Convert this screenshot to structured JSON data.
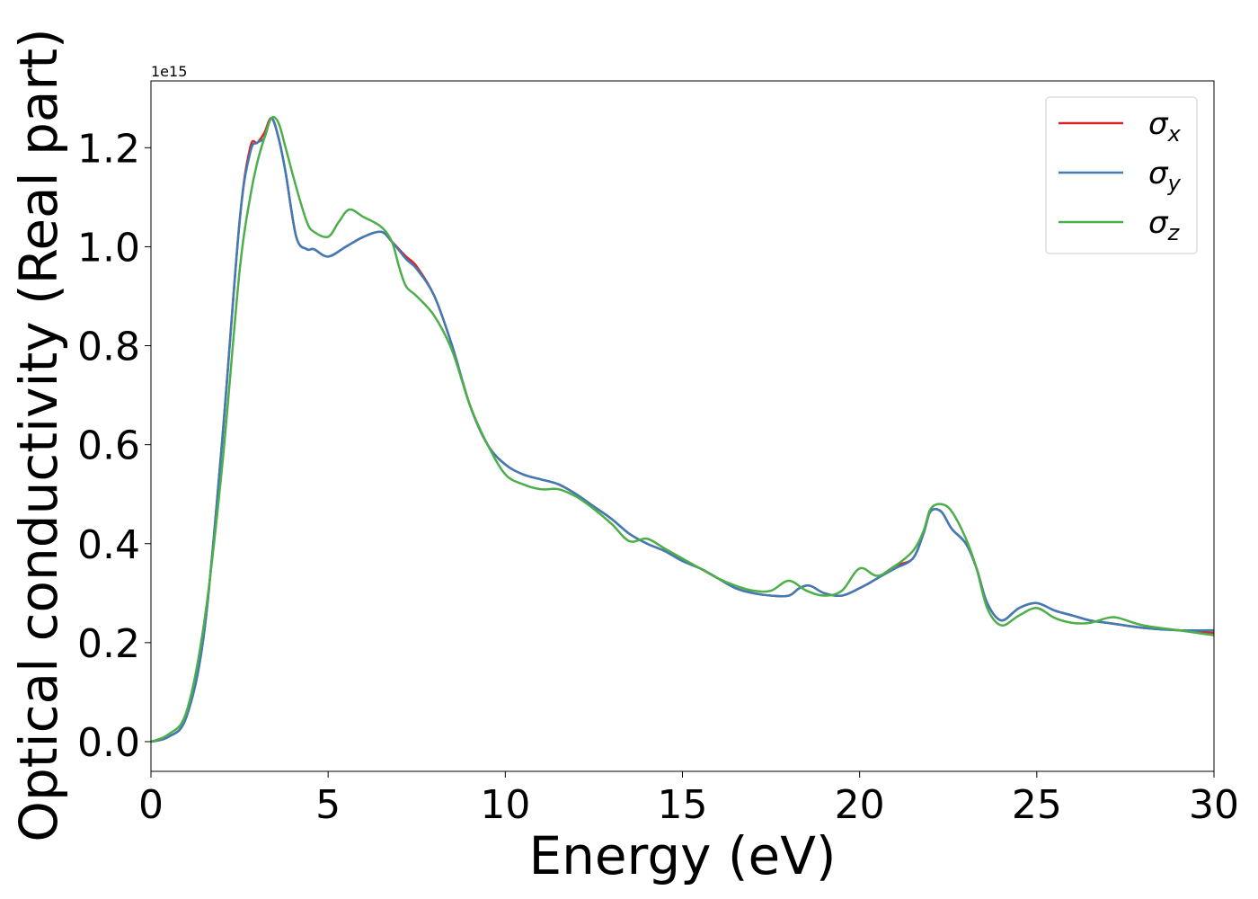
{
  "chart_data": {
    "type": "line",
    "xlabel": "Energy (eV)",
    "ylabel": "Optical conductivity (Real part)",
    "y_offset_text": "1e15",
    "xlim": [
      0,
      30
    ],
    "ylim": [
      -0.06,
      1.335
    ],
    "x_ticks": [
      0,
      5,
      10,
      15,
      20,
      25,
      30
    ],
    "x_tick_labels": [
      "0",
      "5",
      "10",
      "15",
      "20",
      "25",
      "30"
    ],
    "y_ticks": [
      0.0,
      0.2,
      0.4,
      0.6,
      0.8,
      1.0,
      1.2
    ],
    "y_tick_labels": [
      "0.0",
      "0.2",
      "0.4",
      "0.6",
      "0.8",
      "1.0",
      "1.2"
    ],
    "grid": false,
    "legend_position": "top-right",
    "series": [
      {
        "name": "σ",
        "subscript": "x",
        "color": "#d62728",
        "x": [
          0,
          0.5,
          1.0,
          1.5,
          2.0,
          2.5,
          2.8,
          3.0,
          3.2,
          3.4,
          3.6,
          3.8,
          4.1,
          4.4,
          4.6,
          5.0,
          5.5,
          6.0,
          6.5,
          6.8,
          7.2,
          7.5,
          8.0,
          8.5,
          9.0,
          9.5,
          10.0,
          10.5,
          11.0,
          11.5,
          12.0,
          12.5,
          13.0,
          13.5,
          14.0,
          14.5,
          15.0,
          15.5,
          16.0,
          16.5,
          17.0,
          17.5,
          18.0,
          18.3,
          18.6,
          19.0,
          19.5,
          20.0,
          20.5,
          21.0,
          21.5,
          21.8,
          22.0,
          22.3,
          22.6,
          23.0,
          23.3,
          23.6,
          24.0,
          24.5,
          25.0,
          25.5,
          26.0,
          26.5,
          27.0,
          28.0,
          29.0,
          30.0
        ],
        "values": [
          0.0,
          0.01,
          0.05,
          0.22,
          0.6,
          1.05,
          1.2,
          1.21,
          1.23,
          1.26,
          1.22,
          1.15,
          1.02,
          0.995,
          0.995,
          0.98,
          1.0,
          1.02,
          1.03,
          1.01,
          0.98,
          0.96,
          0.9,
          0.8,
          0.68,
          0.6,
          0.56,
          0.54,
          0.53,
          0.52,
          0.5,
          0.475,
          0.45,
          0.42,
          0.4,
          0.385,
          0.365,
          0.35,
          0.33,
          0.31,
          0.3,
          0.295,
          0.295,
          0.31,
          0.315,
          0.3,
          0.295,
          0.31,
          0.33,
          0.355,
          0.37,
          0.42,
          0.465,
          0.465,
          0.43,
          0.4,
          0.35,
          0.28,
          0.245,
          0.27,
          0.28,
          0.265,
          0.255,
          0.245,
          0.24,
          0.23,
          0.225,
          0.22
        ]
      },
      {
        "name": "σ",
        "subscript": "y",
        "color": "#3f7bb5",
        "x": [
          0,
          0.5,
          1.0,
          1.5,
          2.0,
          2.5,
          2.8,
          3.0,
          3.2,
          3.4,
          3.6,
          3.8,
          4.1,
          4.4,
          4.6,
          5.0,
          5.5,
          6.0,
          6.5,
          6.8,
          7.2,
          7.5,
          8.0,
          8.5,
          9.0,
          9.5,
          10.0,
          10.5,
          11.0,
          11.5,
          12.0,
          12.5,
          13.0,
          13.5,
          14.0,
          14.5,
          15.0,
          15.5,
          16.0,
          16.5,
          17.0,
          17.5,
          18.0,
          18.3,
          18.6,
          19.0,
          19.5,
          20.0,
          20.5,
          21.0,
          21.5,
          21.8,
          22.0,
          22.3,
          22.6,
          23.0,
          23.3,
          23.6,
          24.0,
          24.5,
          25.0,
          25.5,
          26.0,
          26.5,
          27.0,
          28.0,
          29.0,
          30.0
        ],
        "values": [
          0.0,
          0.01,
          0.05,
          0.22,
          0.6,
          1.05,
          1.19,
          1.21,
          1.22,
          1.26,
          1.22,
          1.15,
          1.02,
          0.995,
          0.995,
          0.98,
          1.0,
          1.02,
          1.03,
          1.01,
          0.975,
          0.955,
          0.9,
          0.8,
          0.68,
          0.6,
          0.56,
          0.54,
          0.53,
          0.52,
          0.5,
          0.475,
          0.45,
          0.42,
          0.4,
          0.385,
          0.365,
          0.35,
          0.33,
          0.31,
          0.3,
          0.295,
          0.295,
          0.31,
          0.315,
          0.3,
          0.295,
          0.31,
          0.33,
          0.35,
          0.37,
          0.42,
          0.465,
          0.465,
          0.43,
          0.4,
          0.35,
          0.28,
          0.245,
          0.27,
          0.28,
          0.265,
          0.255,
          0.245,
          0.24,
          0.23,
          0.225,
          0.225
        ]
      },
      {
        "name": "σ",
        "subscript": "z",
        "color": "#4daf4a",
        "x": [
          0,
          0.5,
          1.0,
          1.5,
          2.0,
          2.5,
          2.8,
          3.0,
          3.2,
          3.4,
          3.6,
          3.8,
          4.1,
          4.4,
          4.6,
          5.0,
          5.3,
          5.6,
          6.0,
          6.5,
          6.8,
          7.0,
          7.2,
          7.5,
          8.0,
          8.5,
          9.0,
          9.5,
          10.0,
          10.5,
          11.0,
          11.5,
          12.0,
          12.5,
          13.0,
          13.5,
          14.0,
          14.5,
          15.0,
          15.5,
          16.0,
          16.5,
          17.0,
          17.5,
          18.0,
          18.5,
          19.0,
          19.5,
          20.0,
          20.5,
          21.0,
          21.5,
          21.8,
          22.0,
          22.3,
          22.6,
          23.0,
          23.3,
          23.6,
          24.0,
          24.5,
          25.0,
          25.5,
          26.0,
          26.5,
          27.0,
          27.3,
          28.0,
          29.0,
          30.0
        ],
        "values": [
          0.0,
          0.015,
          0.06,
          0.24,
          0.55,
          0.95,
          1.1,
          1.17,
          1.22,
          1.26,
          1.25,
          1.2,
          1.12,
          1.05,
          1.03,
          1.02,
          1.05,
          1.075,
          1.06,
          1.04,
          1.01,
          0.96,
          0.92,
          0.9,
          0.86,
          0.79,
          0.68,
          0.6,
          0.54,
          0.52,
          0.51,
          0.51,
          0.495,
          0.47,
          0.44,
          0.405,
          0.41,
          0.39,
          0.37,
          0.35,
          0.33,
          0.315,
          0.305,
          0.305,
          0.325,
          0.305,
          0.295,
          0.305,
          0.35,
          0.335,
          0.355,
          0.385,
          0.425,
          0.47,
          0.48,
          0.465,
          0.41,
          0.35,
          0.27,
          0.235,
          0.255,
          0.27,
          0.25,
          0.24,
          0.24,
          0.25,
          0.25,
          0.235,
          0.225,
          0.215
        ]
      }
    ]
  }
}
